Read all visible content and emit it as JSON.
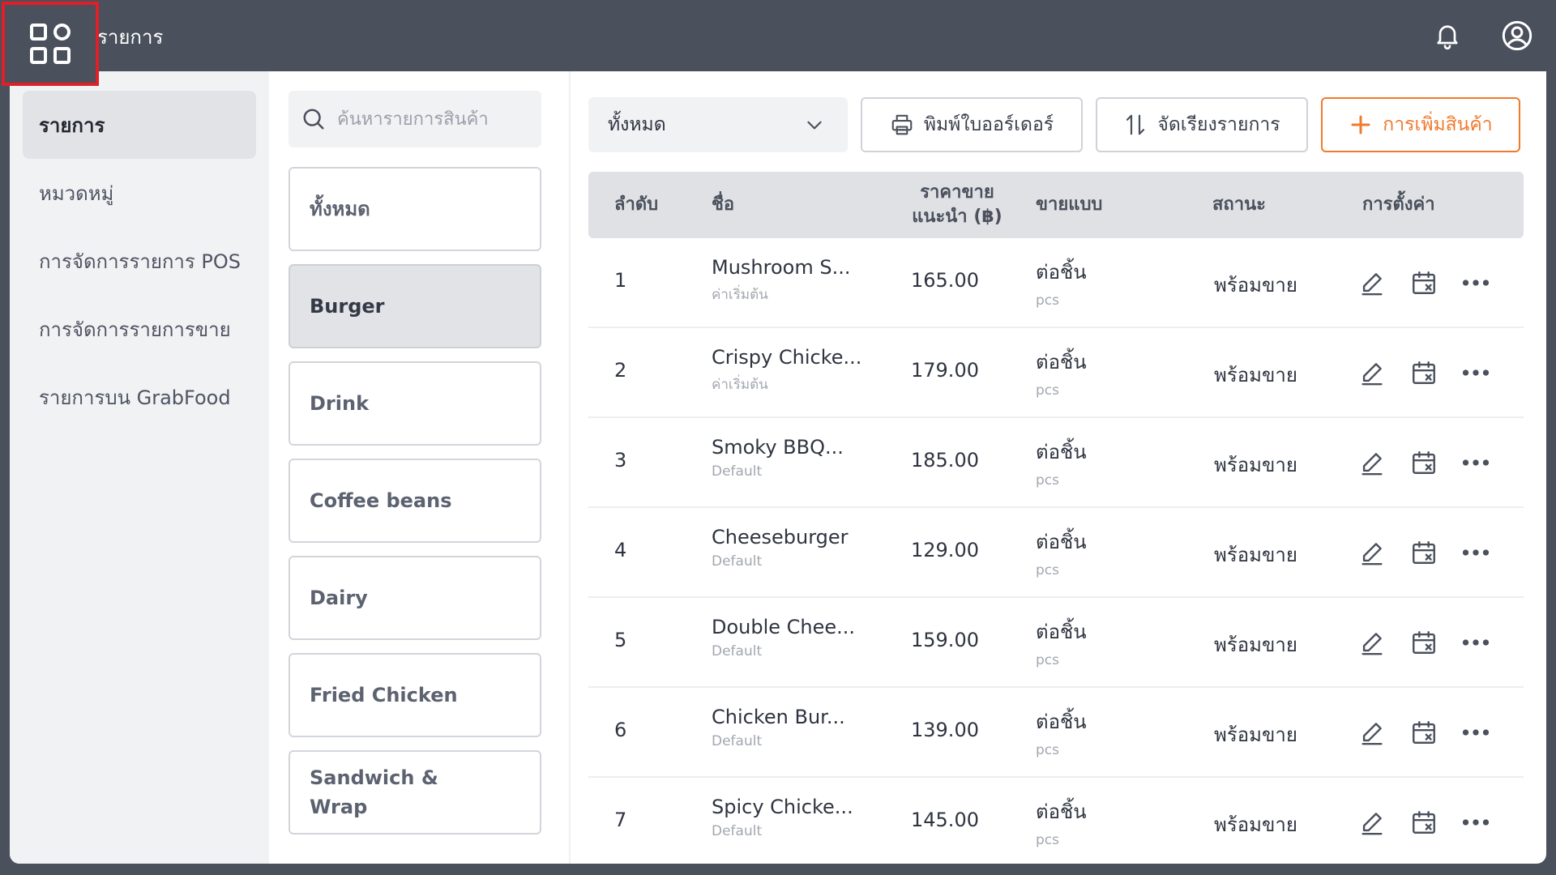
{
  "app": {
    "title": "รายการ"
  },
  "sidebar": {
    "items": [
      {
        "label": "รายการ"
      },
      {
        "label": "หมวดหมู่"
      },
      {
        "label": "การจัดการรายการ POS"
      },
      {
        "label": "การจัดการรายการขาย"
      },
      {
        "label": "รายการบน GrabFood"
      }
    ]
  },
  "search": {
    "placeholder": "ค้นหารายการสินค้า"
  },
  "categories": [
    {
      "label": "ทั้งหมด"
    },
    {
      "label": "Burger"
    },
    {
      "label": "Drink"
    },
    {
      "label": "Coffee beans"
    },
    {
      "label": "Dairy"
    },
    {
      "label": "Fried Chicken"
    },
    {
      "label": "Sandwich & Wrap"
    }
  ],
  "toolbar": {
    "filter_value": "ทั้งหมด",
    "print_label": "พิมพ์ใบออร์เดอร์",
    "sort_label": "จัดเรียงรายการ",
    "add_label": "การเพิ่มสินค้า"
  },
  "table": {
    "headers": {
      "index": "ลำดับ",
      "name": "ชื่อ",
      "price_line1": "ราคาขาย",
      "price_line2": "แนะนำ (฿)",
      "sell_type": "ขายแบบ",
      "status": "สถานะ",
      "settings": "การตั้งค่า"
    },
    "rows": [
      {
        "index": "1",
        "name": "Mushroom S...",
        "variant": "ค่าเริ่มต้น",
        "price": "165.00",
        "sell": "ต่อชิ้น",
        "unit": "pcs",
        "status": "พร้อมขาย"
      },
      {
        "index": "2",
        "name": "Crispy Chicke...",
        "variant": "ค่าเริ่มต้น",
        "price": "179.00",
        "sell": "ต่อชิ้น",
        "unit": "pcs",
        "status": "พร้อมขาย"
      },
      {
        "index": "3",
        "name": "Smoky BBQ...",
        "variant": "Default",
        "price": "185.00",
        "sell": "ต่อชิ้น",
        "unit": "pcs",
        "status": "พร้อมขาย"
      },
      {
        "index": "4",
        "name": "Cheeseburger",
        "variant": "Default",
        "price": "129.00",
        "sell": "ต่อชิ้น",
        "unit": "pcs",
        "status": "พร้อมขาย"
      },
      {
        "index": "5",
        "name": "Double Chee...",
        "variant": "Default",
        "price": "159.00",
        "sell": "ต่อชิ้น",
        "unit": "pcs",
        "status": "พร้อมขาย"
      },
      {
        "index": "6",
        "name": "Chicken Bur...",
        "variant": "Default",
        "price": "139.00",
        "sell": "ต่อชิ้น",
        "unit": "pcs",
        "status": "พร้อมขาย"
      },
      {
        "index": "7",
        "name": "Spicy Chicke...",
        "variant": "Default",
        "price": "145.00",
        "sell": "ต่อชิ้น",
        "unit": "pcs",
        "status": "พร้อมขาย"
      }
    ]
  },
  "icons": {
    "apps": "apps-grid-icon",
    "notifications": "bell-icon",
    "account": "user-circle-icon",
    "search": "search-icon",
    "dropdown": "chevron-down-icon",
    "print": "printer-icon",
    "sort": "sort-icon",
    "add": "plus-icon",
    "edit": "edit-icon",
    "disable": "calendar-x-icon",
    "more": "more-icon"
  },
  "colors": {
    "topbar": "#4a505c",
    "accent": "#f07a2e",
    "highlight": "#e01f26"
  }
}
